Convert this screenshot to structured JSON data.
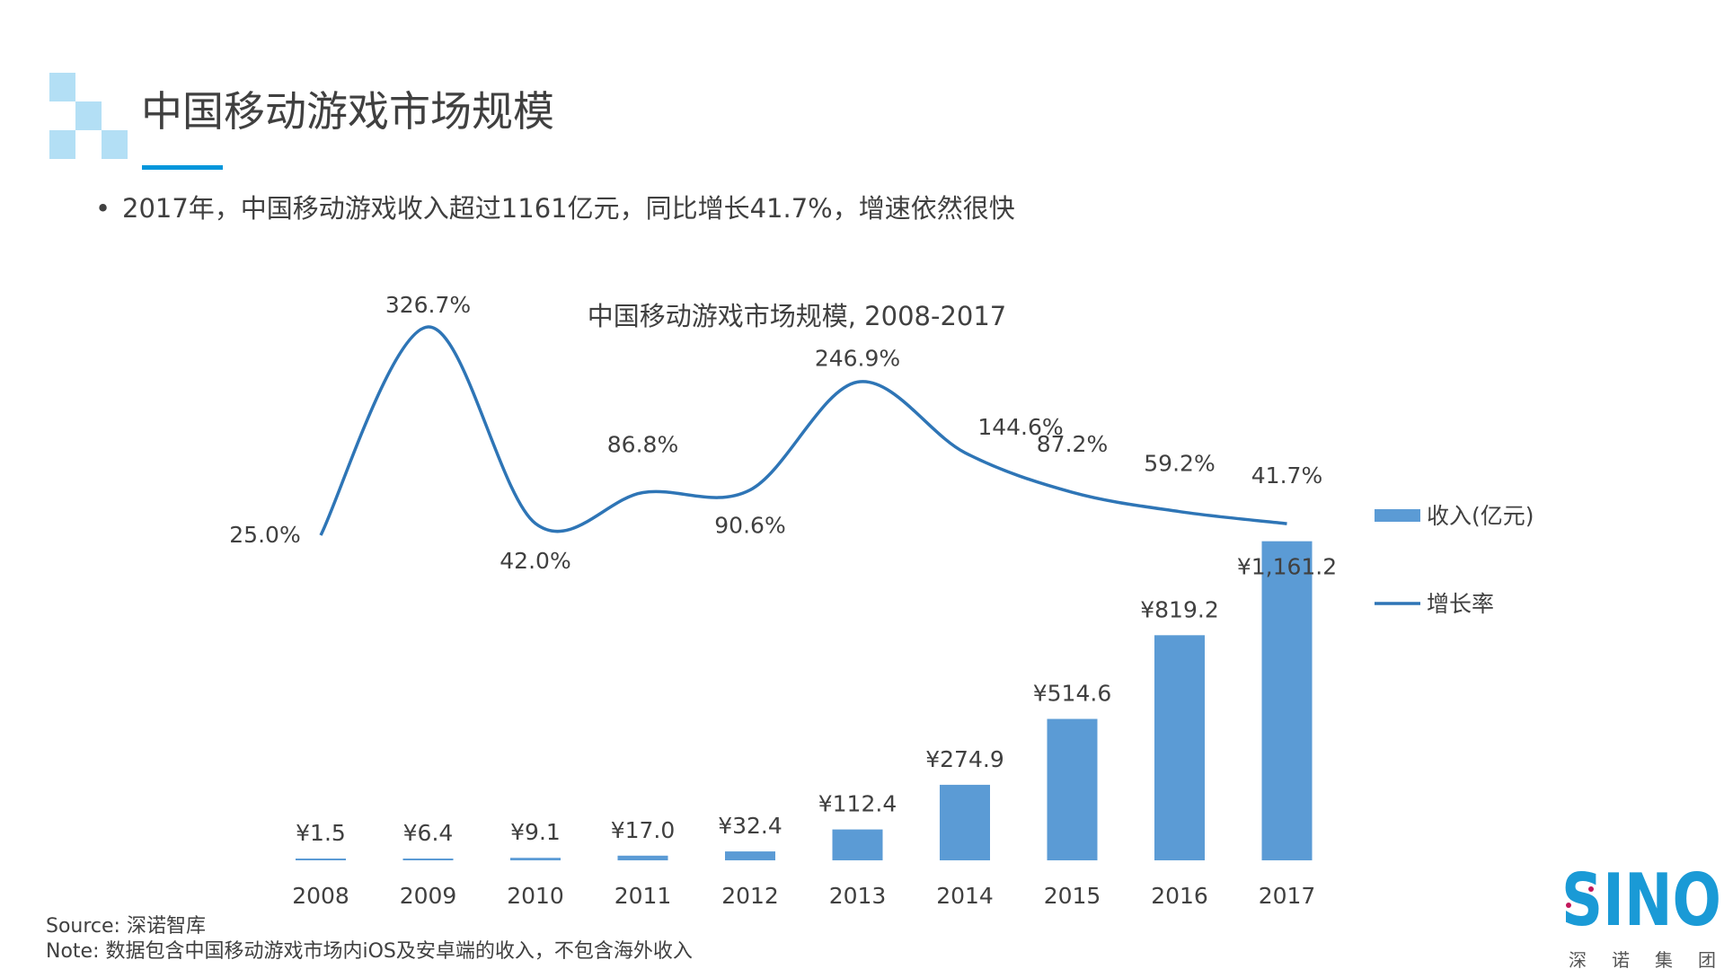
{
  "header": {
    "title": "中国移动游戏市场规模"
  },
  "bullet": "2017年，中国移动游戏收入超过1161亿元，同比增长41.7%，增速依然很快",
  "chart_data": {
    "type": "bar+line",
    "title": "中国移动游戏市场规模, 2008-2017",
    "categories": [
      "2008",
      "2009",
      "2010",
      "2011",
      "2012",
      "2013",
      "2014",
      "2015",
      "2016",
      "2017"
    ],
    "series": [
      {
        "name": "收入(亿元)",
        "type": "bar",
        "color": "#5b9bd5",
        "values": [
          1.5,
          6.4,
          9.1,
          17.0,
          32.4,
          112.4,
          274.9,
          514.6,
          819.2,
          1161.2
        ],
        "labels": [
          "¥1.5",
          "¥6.4",
          "¥9.1",
          "¥17.0",
          "¥32.4",
          "¥112.4",
          "¥274.9",
          "¥514.6",
          "¥819.2",
          "¥1,161.2"
        ]
      },
      {
        "name": "增长率",
        "type": "line",
        "color": "#2e75b6",
        "values": [
          25.0,
          326.7,
          42.0,
          86.8,
          90.6,
          246.9,
          144.6,
          87.2,
          59.2,
          41.7
        ],
        "labels": [
          "25.0%",
          "326.7%",
          "42.0%",
          "86.8%",
          "90.6%",
          "246.9%",
          "144.6%",
          "87.2%",
          "59.2%",
          "41.7%"
        ]
      }
    ],
    "legend_position": "right",
    "grid": false
  },
  "footer": {
    "source": "Source: 深诺智库",
    "note": "Note: 数据包含中国移动游戏市场内iOS及安卓端的收入，不包含海外收入"
  },
  "logo": {
    "text": "SINO",
    "subtext": "深 诺 集 团",
    "color": "#1a9ad6"
  }
}
